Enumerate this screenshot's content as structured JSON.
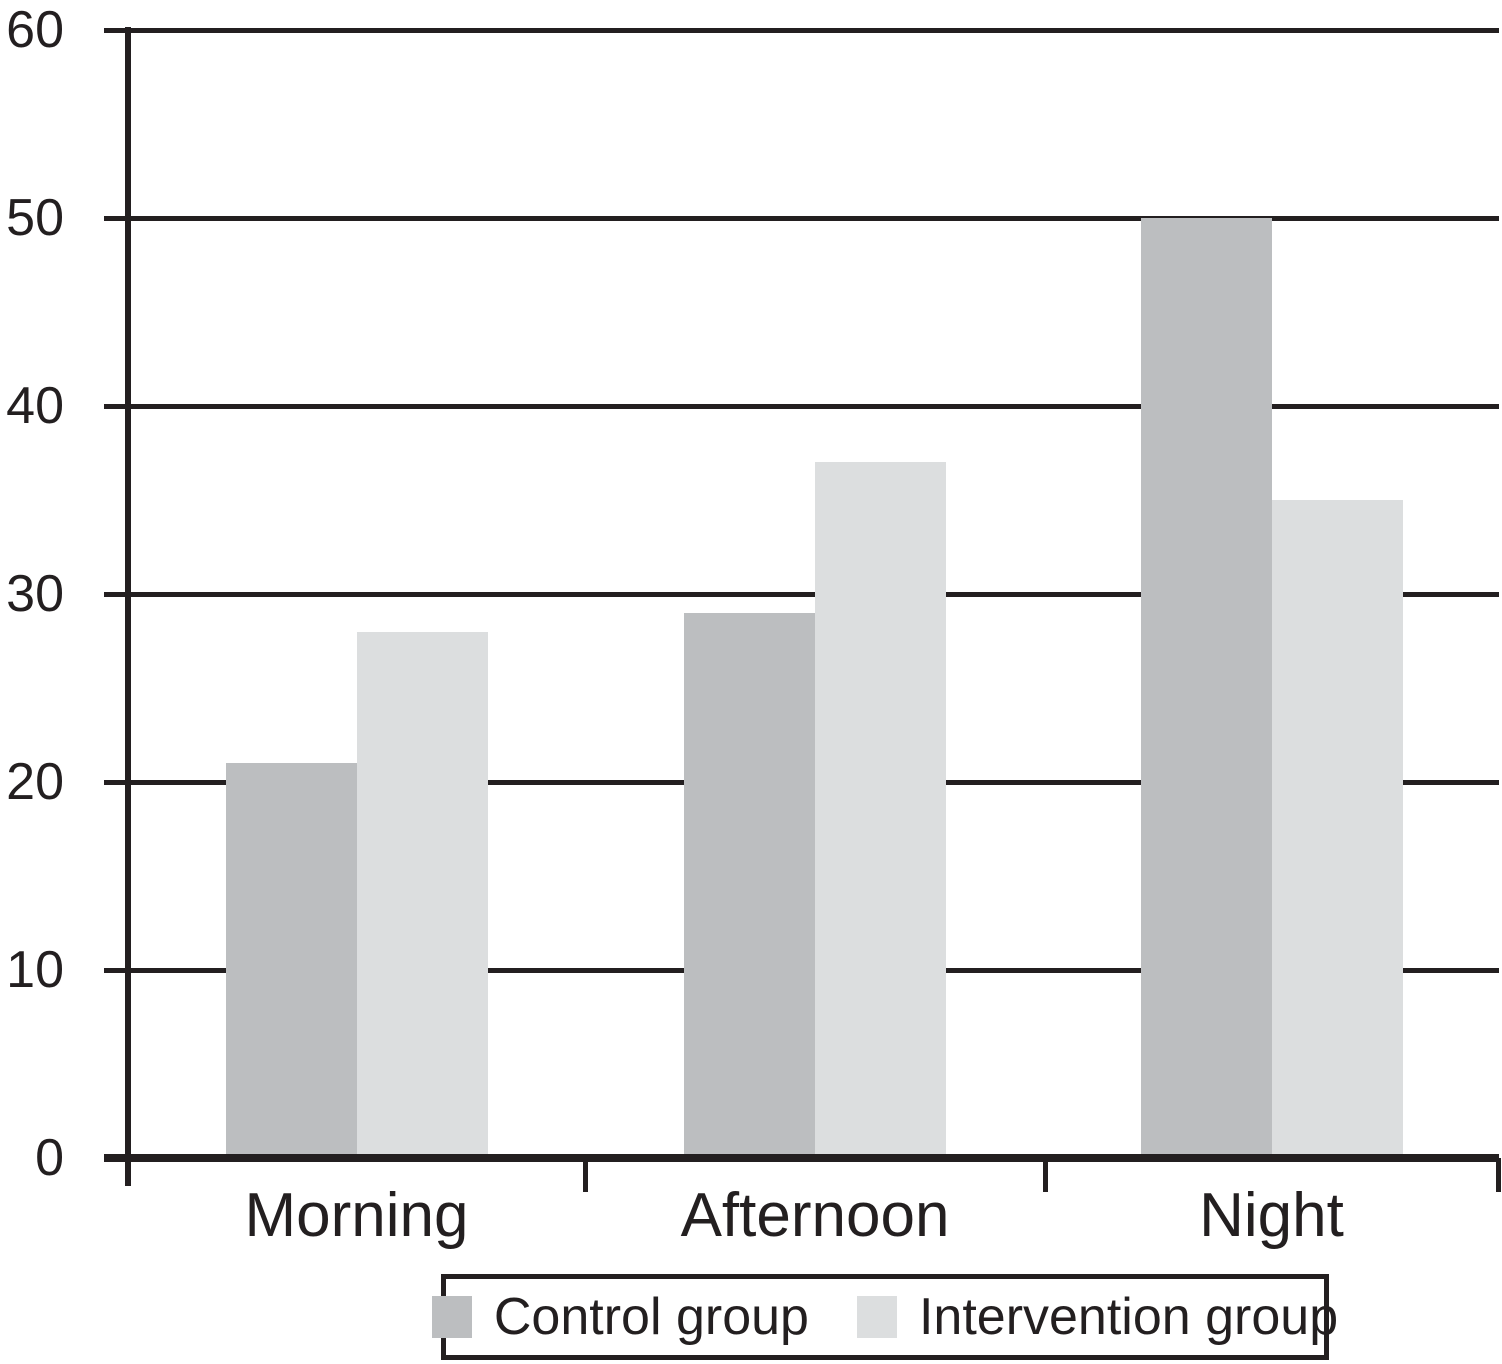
{
  "chart_data": {
    "type": "bar",
    "title": "",
    "xlabel": "",
    "ylabel": "",
    "categories": [
      "Morning",
      "Afternoon",
      "Night"
    ],
    "series": [
      {
        "name": "Control group",
        "values": [
          21,
          29,
          50
        ],
        "color": "#bcbec0"
      },
      {
        "name": "Intervention group",
        "values": [
          28,
          37,
          35
        ],
        "color": "#dcdedf"
      }
    ],
    "ylim": [
      0,
      60
    ],
    "yticks": [
      0,
      10,
      20,
      30,
      40,
      50,
      60
    ],
    "grid": true,
    "legend_position": "bottom-center",
    "axis_color": "#231f20",
    "background_color": "#ffffff"
  }
}
